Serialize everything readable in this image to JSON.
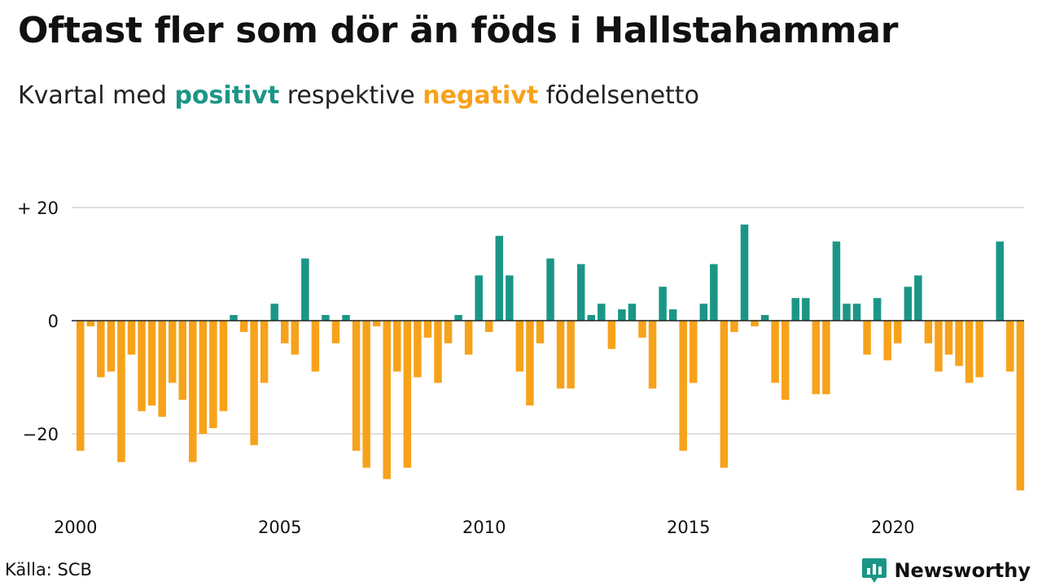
{
  "title": "Oftast fler som dör än föds i Hallstahammar",
  "subtitle": {
    "prefix": "Kvartal med",
    "positive_word": "positivt",
    "middle": "respektive",
    "negative_word": "negativt",
    "suffix": "födelsenetto"
  },
  "colors": {
    "positive": "#1b9686",
    "negative": "#f7a21b",
    "gridline": "#dddddd",
    "zero_line": "#222222"
  },
  "source": "Källa: SCB",
  "brand": {
    "name": "Newsworthy",
    "icon": "newsworthy-logo-icon"
  },
  "chart_data": {
    "type": "bar",
    "title": "Oftast fler som dör än föds i Hallstahammar",
    "subtitle": "Kvartal med positivt respektive negativt födelsenetto",
    "xlabel": "",
    "ylabel": "",
    "start_period": "2000 Q1",
    "x_ticks": [
      "2000",
      "2005",
      "2010",
      "2015",
      "2020"
    ],
    "y_ticks": [
      {
        "value": 20,
        "label": "+ 20"
      },
      {
        "value": 0,
        "label": "0"
      },
      {
        "value": -20,
        "label": "−20"
      }
    ],
    "ylim": [
      -30,
      20
    ],
    "grid": true,
    "values": [
      -23,
      -1,
      -10,
      -9,
      -25,
      -6,
      -16,
      -15,
      -17,
      -11,
      -14,
      -25,
      -20,
      -19,
      -16,
      1,
      -2,
      -22,
      -11,
      3,
      -4,
      -6,
      11,
      -9,
      1,
      -4,
      1,
      -23,
      -26,
      -1,
      -28,
      -9,
      -26,
      -10,
      -3,
      -11,
      -4,
      1,
      -6,
      8,
      -2,
      15,
      8,
      -9,
      -15,
      -4,
      11,
      -12,
      -12,
      10,
      1,
      3,
      -5,
      2,
      3,
      -3,
      -12,
      6,
      2,
      -23,
      -11,
      3,
      10,
      -26,
      -2,
      17,
      -1,
      1,
      -11,
      -14,
      4,
      4,
      -13,
      -13,
      14,
      3,
      3,
      -6,
      4,
      -7,
      -4,
      6,
      8,
      -4,
      -9,
      -6,
      -8,
      -11,
      -10,
      0,
      14,
      -9,
      -30
    ]
  }
}
